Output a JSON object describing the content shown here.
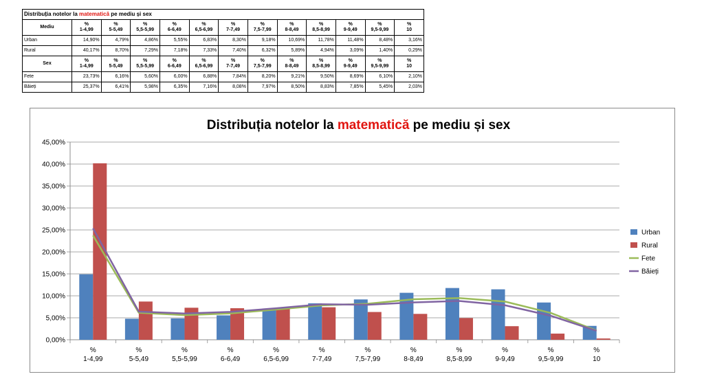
{
  "table": {
    "title_pre": "Distribuția notelor la ",
    "title_accent": "matematică",
    "title_post": " pe mediu și sex",
    "headers": [
      "%\n1-4,99",
      "%\n5-5,49",
      "%\n5,5-5,99",
      "%\n6-6,49",
      "%\n6,5-6,99",
      "%\n7-7,49",
      "%\n7,5-7,99",
      "%\n8-8,49",
      "%\n8,5-8,99",
      "%\n9-9,49",
      "%\n9,5-9,99",
      "%\n10"
    ],
    "groups": [
      {
        "label": "Mediu",
        "rows": [
          {
            "label": "Urban",
            "values": [
              "14,90%",
              "4,79%",
              "4,86%",
              "5,55%",
              "6,83%",
              "8,30%",
              "9,18%",
              "10,69%",
              "11,78%",
              "11,48%",
              "8,48%",
              "3,16%"
            ]
          },
          {
            "label": "Rural",
            "values": [
              "40,17%",
              "8,70%",
              "7,29%",
              "7,18%",
              "7,33%",
              "7,40%",
              "6,32%",
              "5,89%",
              "4,94%",
              "3,09%",
              "1,40%",
              "0,29%"
            ]
          }
        ]
      },
      {
        "label": "Sex",
        "rows": [
          {
            "label": "Fete",
            "values": [
              "23,73%",
              "6,16%",
              "5,60%",
              "6,00%",
              "6,88%",
              "7,84%",
              "8,20%",
              "9,21%",
              "9,50%",
              "8,69%",
              "6,10%",
              "2,10%"
            ]
          },
          {
            "label": "Băieți",
            "values": [
              "25,37%",
              "6,41%",
              "5,98%",
              "6,35%",
              "7,16%",
              "8,08%",
              "7,97%",
              "8,50%",
              "8,83%",
              "7,85%",
              "5,45%",
              "2,03%"
            ]
          }
        ]
      }
    ]
  },
  "chart_data": {
    "type": "bar",
    "title_pre": "Distribuția notelor la ",
    "title_accent": "matematică",
    "title_post": " pe mediu și sex",
    "categories": [
      [
        "%",
        "1-4,99"
      ],
      [
        "%",
        "5-5,49"
      ],
      [
        "%",
        "5,5-5,99"
      ],
      [
        "%",
        "6-6,49"
      ],
      [
        "%",
        "6,5-6,99"
      ],
      [
        "%",
        "7-7,49"
      ],
      [
        "%",
        "7,5-7,99"
      ],
      [
        "%",
        "8-8,49"
      ],
      [
        "%",
        "8,5-8,99"
      ],
      [
        "%",
        "9-9,49"
      ],
      [
        "%",
        "9,5-9,99"
      ],
      [
        "%",
        "10"
      ]
    ],
    "bar_series": [
      {
        "name": "Urban",
        "color": "#4f81bd",
        "values": [
          14.9,
          4.79,
          4.86,
          5.55,
          6.83,
          8.3,
          9.18,
          10.69,
          11.78,
          11.48,
          8.48,
          3.16
        ]
      },
      {
        "name": "Rural",
        "color": "#c0504d",
        "values": [
          40.17,
          8.7,
          7.29,
          7.18,
          7.33,
          7.4,
          6.32,
          5.89,
          4.94,
          3.09,
          1.4,
          0.29
        ]
      }
    ],
    "line_series": [
      {
        "name": "Fete",
        "color": "#9bbb59",
        "values": [
          23.73,
          6.16,
          5.6,
          6.0,
          6.88,
          7.84,
          8.2,
          9.21,
          9.5,
          8.69,
          6.1,
          2.1
        ]
      },
      {
        "name": "Băieți",
        "color": "#8064a2",
        "values": [
          25.37,
          6.41,
          5.98,
          6.35,
          7.16,
          8.08,
          7.97,
          8.5,
          8.83,
          7.85,
          5.45,
          2.03
        ]
      }
    ],
    "ylim": [
      0,
      45
    ],
    "yticks": [
      0,
      5,
      10,
      15,
      20,
      25,
      30,
      35,
      40,
      45
    ],
    "ytick_labels": [
      "0,00%",
      "5,00%",
      "10,00%",
      "15,00%",
      "20,00%",
      "25,00%",
      "30,00%",
      "35,00%",
      "40,00%",
      "45,00%"
    ],
    "grid": true,
    "legend_position": "right",
    "accent_color": "#e1140f"
  }
}
